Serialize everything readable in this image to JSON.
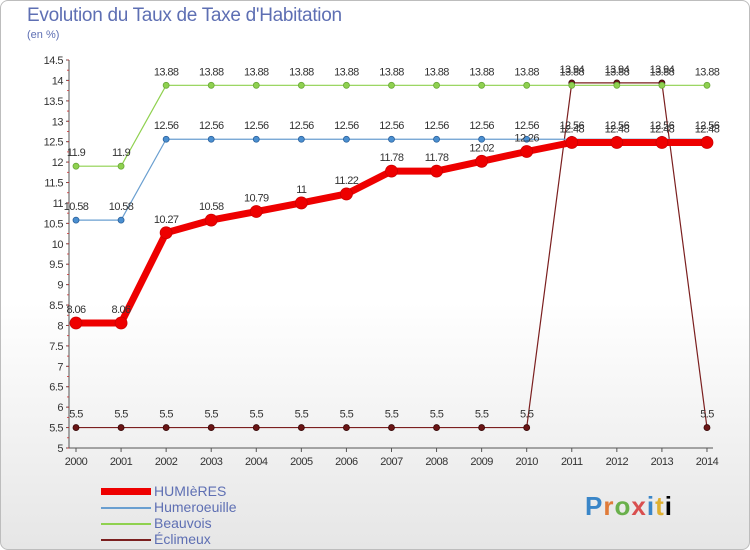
{
  "chart_data": {
    "type": "line",
    "title": "Evolution du Taux de Taxe d'Habitation",
    "subtitle": "(en %)",
    "x": [
      "2000",
      "2001",
      "2002",
      "2003",
      "2004",
      "2005",
      "2006",
      "2007",
      "2008",
      "2009",
      "2010",
      "2011",
      "2012",
      "2013",
      "2014"
    ],
    "ylim": [
      5,
      14.5
    ],
    "yticks": [
      "5",
      "5.5",
      "6",
      "6.5",
      "7",
      "7.5",
      "8",
      "8.5",
      "9",
      "9.5",
      "10",
      "10.5",
      "11",
      "11.5",
      "12",
      "12.5",
      "13",
      "13.5",
      "14",
      "14.5"
    ],
    "grid": false,
    "legend_position": "bottom-left",
    "series": [
      {
        "name": "Éclimeux",
        "color": "#7b1f1f",
        "values": [
          5.5,
          5.5,
          5.5,
          5.5,
          5.5,
          5.5,
          5.5,
          5.5,
          5.5,
          5.5,
          5.5,
          13.94,
          13.94,
          13.94,
          5.5
        ],
        "labels": [
          "5.5",
          "5.5",
          "5.5",
          "5.5",
          "5.5",
          "5.5",
          "5.5",
          "5.5",
          "5.5",
          "5.5",
          "5.5",
          "13.94",
          "13.94",
          "13.94",
          "5.5"
        ]
      },
      {
        "name": "Beauvois",
        "color": "#8fd14f",
        "values": [
          11.9,
          11.9,
          13.88,
          13.88,
          13.88,
          13.88,
          13.88,
          13.88,
          13.88,
          13.88,
          13.88,
          13.88,
          13.88,
          13.88,
          13.88
        ],
        "labels": [
          "11.9",
          "11.9",
          "13.88",
          "13.88",
          "13.88",
          "13.88",
          "13.88",
          "13.88",
          "13.88",
          "13.88",
          "13.88",
          "13.88",
          "13.88",
          "13.88",
          "13.88"
        ]
      },
      {
        "name": "Humeroeuille",
        "color": "#6a9fd0",
        "values": [
          10.58,
          10.58,
          12.56,
          12.56,
          12.56,
          12.56,
          12.56,
          12.56,
          12.56,
          12.56,
          12.56,
          12.56,
          12.56,
          12.56,
          12.56
        ],
        "labels": [
          "10.58",
          "10.58",
          "12.56",
          "12.56",
          "12.56",
          "12.56",
          "12.56",
          "12.56",
          "12.56",
          "12.56",
          "12.56",
          "12.56",
          "12.56",
          "12.56",
          "12.56"
        ]
      },
      {
        "name": "HUMIèRES",
        "color": "#ee0000",
        "values": [
          8.06,
          8.06,
          10.27,
          10.58,
          10.79,
          11,
          11.22,
          11.78,
          11.78,
          12.02,
          12.26,
          12.48,
          12.48,
          12.48,
          12.48
        ],
        "labels": [
          "8.06",
          "8.06",
          "10.27",
          "10.58",
          "10.79",
          "11",
          "11.22",
          "11.78",
          "11.78",
          "12.02",
          "12.26",
          "12.48",
          "12.48",
          "12.48",
          "12.48"
        ]
      }
    ],
    "legend_order": [
      "HUMIèRES",
      "Humeroeuille",
      "Beauvois",
      "Éclimeux"
    ]
  },
  "logo": {
    "letters": [
      "P",
      "r",
      "o",
      "x",
      "i",
      "t",
      "i"
    ]
  }
}
